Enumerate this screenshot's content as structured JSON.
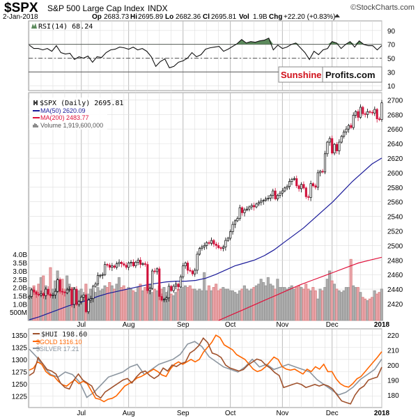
{
  "header": {
    "symbol": "$SPX",
    "name": "S&P 500 Large Cap Index",
    "exchange": "INDX",
    "watermark": "©StockCharts.com",
    "date": "2-Jan-2018",
    "op_label": "Op",
    "op": "2683.73",
    "hi_label": "Hi",
    "hi": "2695.89",
    "lo_label": "Lo",
    "lo": "2682.36",
    "cl_label": "Cl",
    "cl": "2695.81",
    "vol_label": "Vol",
    "vol": "1.9B",
    "chg_label": "Chg",
    "chg": "+22.20 (+0.83%)"
  },
  "logo": {
    "part1": "Sunshine",
    "part2": "Profits.com"
  },
  "colors": {
    "up": "#000000",
    "down": "#d0103a",
    "ma50": "#1a1a99",
    "ma200": "#e0103a",
    "vol_up": "#b0b0b0",
    "vol_down": "#eaa8ae",
    "rsi_fill": "#5c8a5c",
    "hui": "#a0522d",
    "gold": "#ff6600",
    "silver": "#8c96a0",
    "grid": "#dddddd"
  },
  "chart_data": [
    {
      "type": "line",
      "panel": "rsi",
      "legend": "RSI(14) 68.24",
      "y_ticks": [
        "90",
        "70",
        "50",
        "30",
        "10"
      ],
      "ylim": [
        3,
        104
      ],
      "reference_lines": [
        70,
        50,
        30
      ],
      "values": [
        69,
        64,
        64,
        62,
        64,
        60,
        68,
        58,
        56,
        57,
        48,
        52,
        50,
        53,
        44,
        52,
        51,
        58,
        62,
        63,
        66,
        65,
        63,
        66,
        62,
        64,
        60,
        52,
        38,
        45,
        49,
        36,
        38,
        44,
        46,
        50,
        58,
        52,
        55,
        63,
        65,
        66,
        67,
        60,
        63,
        67,
        71,
        77,
        72,
        74,
        73,
        75,
        76,
        79,
        62,
        69,
        64,
        66,
        70,
        72,
        65,
        58,
        48,
        60,
        55,
        62,
        64,
        74,
        72,
        64,
        70,
        74,
        66,
        75,
        70,
        68,
        68,
        62,
        68.24
      ]
    },
    {
      "type": "candlestick",
      "panel": "price",
      "legend": [
        {
          "label": "$SPX (Daily) 2695.81"
        },
        {
          "label": "MA(50) 2620.09"
        },
        {
          "label": "MA(200) 2483.77"
        },
        {
          "label": "Volume 1,919,600,000"
        }
      ],
      "y_ticks": [
        "2700",
        "2680",
        "2660",
        "2640",
        "2620",
        "2600",
        "2580",
        "2560",
        "2540",
        "2520",
        "2500",
        "2480",
        "2460",
        "2440",
        "2420"
      ],
      "ylim": [
        2397,
        2710
      ],
      "volume_ticks": [
        "4.0B",
        "3.5B",
        "3.0B",
        "2.5B",
        "2.0B",
        "1.5B",
        "1.0B",
        "500M"
      ],
      "x_ticks": [
        {
          "label": "Jul",
          "index": 22
        },
        {
          "label": "Aug",
          "index": 42
        },
        {
          "label": "Sep",
          "index": 65
        },
        {
          "label": "Oct",
          "index": 85
        },
        {
          "label": "Nov",
          "index": 107
        },
        {
          "label": "Dec",
          "index": 128
        },
        {
          "label": "2018",
          "index": 149
        }
      ],
      "close": [
        2430,
        2439,
        2436,
        2433,
        2432,
        2434,
        2431,
        2440,
        2433,
        2431,
        2432,
        2437,
        2453,
        2437,
        2436,
        2435,
        2439,
        2440,
        2419,
        2440,
        2419,
        2423,
        2429,
        2432,
        2409,
        2425,
        2427,
        2444,
        2447,
        2459,
        2459,
        2460,
        2474,
        2473,
        2470,
        2472,
        2470,
        2475,
        2477,
        2475,
        2473,
        2470,
        2476,
        2477,
        2472,
        2477,
        2480,
        2474,
        2475,
        2474,
        2438,
        2441,
        2465,
        2464,
        2468,
        2430,
        2425,
        2426,
        2428,
        2444,
        2438,
        2444,
        2447,
        2443,
        2457,
        2472,
        2476,
        2466,
        2465,
        2461,
        2466,
        2488,
        2496,
        2498,
        2500,
        2504,
        2503,
        2507,
        2502,
        2500,
        2497,
        2496,
        2498,
        2507,
        2510,
        2519,
        2529,
        2534,
        2537,
        2552,
        2545,
        2549,
        2550,
        2553,
        2555,
        2553,
        2557,
        2559,
        2561,
        2562,
        2564,
        2565,
        2569,
        2575,
        2564,
        2569,
        2572,
        2575,
        2579,
        2581,
        2588,
        2591,
        2592,
        2582,
        2578,
        2584,
        2579,
        2567,
        2566,
        2585,
        2582,
        2580,
        2600,
        2602,
        2601,
        2626,
        2642,
        2647,
        2627,
        2639,
        2630,
        2642,
        2650,
        2656,
        2660,
        2665,
        2662,
        2679,
        2684,
        2676,
        2690,
        2681,
        2680,
        2684,
        2683,
        2682,
        2687,
        2674,
        2673,
        2696
      ],
      "volume_billions": [
        2.0,
        1.9,
        2.1,
        1.8,
        2.2,
        2.6,
        2.7,
        2.1,
        1.7,
        3.2,
        1.9,
        2.4,
        3.0,
        2.1,
        2.5,
        1.9,
        2.7,
        2.2,
        2.0,
        2.0,
        1.6,
        1.8,
        1.9,
        1.4,
        2.2,
        1.6,
        1.9,
        1.8,
        1.7,
        2.0,
        1.8,
        1.9,
        2.1,
        2.0,
        2.3,
        2.1,
        1.9,
        2.2,
        2.6,
        2.0,
        2.1,
        1.9,
        2.0,
        1.9,
        1.8,
        1.7,
        2.0,
        2.2,
        1.8,
        2.0,
        2.1,
        2.2,
        1.7,
        1.9,
        1.8,
        2.1,
        1.9,
        2.0,
        1.7,
        1.8,
        1.6,
        1.5,
        1.7,
        1.9,
        1.9,
        2.0,
        2.1,
        2.0,
        2.1,
        1.9,
        1.9,
        1.8,
        1.9,
        1.8,
        2.9,
        1.8,
        2.1,
        1.8,
        2.0,
        2.2,
        1.8,
        1.9,
        2.0,
        1.9,
        1.9,
        1.8,
        1.8,
        1.7,
        1.6,
        1.8,
        1.9,
        2.1,
        1.9,
        1.8,
        1.9,
        2.0,
        2.1,
        2.2,
        2.5,
        2.3,
        2.1,
        2.6,
        2.2,
        2.1,
        1.9,
        2.5,
        2.0,
        2.0,
        2.0,
        1.9,
        2.0,
        2.1,
        1.9,
        2.0,
        2.1,
        2.0,
        1.9,
        2.2,
        1.9,
        1.8,
        2.0,
        1.8,
        1.3,
        1.9,
        1.8,
        2.0,
        2.5,
        3.0,
        2.4,
        2.2,
        1.9,
        1.8,
        1.7,
        1.8,
        2.0,
        2.0,
        3.7,
        2.1,
        2.0,
        2.0,
        1.7,
        1.4,
        1.3,
        1.2,
        1.3,
        1.4,
        1.8,
        1.6,
        1.7,
        1.9
      ],
      "ma50": [
        2398,
        2402,
        2407,
        2412,
        2417,
        2421,
        2425,
        2430,
        2434,
        2437,
        2440,
        2443,
        2446,
        2448,
        2450,
        2451,
        2451,
        2452,
        2455,
        2460,
        2466,
        2472,
        2476,
        2480,
        2486,
        2494,
        2504,
        2514,
        2524,
        2536,
        2548,
        2560,
        2574,
        2588,
        2600,
        2612,
        2620.09
      ],
      "ma200_start_index": 80,
      "ma200": [
        2397,
        2404,
        2411,
        2418,
        2425,
        2432,
        2439,
        2446,
        2452,
        2458,
        2464,
        2470,
        2476,
        2480,
        2483.77
      ]
    },
    {
      "type": "line",
      "panel": "commodities",
      "left_axis_ticks": [
        "1350",
        "1325",
        "1300",
        "1275",
        "1250",
        "1225"
      ],
      "left_ylim": [
        1201,
        1363
      ],
      "right_axis_ticks": [
        "220",
        "210",
        "200",
        "190",
        "180"
      ],
      "right_ylim": [
        171.6,
        224.2
      ],
      "x_ticks": [
        {
          "label": "Jul",
          "index": 22
        },
        {
          "label": "Aug",
          "index": 42
        },
        {
          "label": "Sep",
          "index": 65
        },
        {
          "label": "Oct",
          "index": 85
        },
        {
          "label": "Nov",
          "index": 107
        },
        {
          "label": "Dec",
          "index": 128
        },
        {
          "label": "2018",
          "index": 149
        }
      ],
      "series": [
        {
          "name": "$HUI 198.60",
          "axis": "right",
          "values": [
            193,
            195,
            205,
            201,
            197,
            196,
            194,
            188,
            185,
            184,
            190,
            194,
            190,
            188,
            186,
            180,
            178,
            182,
            184,
            186,
            188,
            190,
            191,
            188,
            192,
            195,
            196,
            193,
            191,
            193,
            198,
            196,
            200,
            199,
            201,
            202,
            208,
            210,
            213,
            218,
            215,
            208,
            207,
            205,
            200,
            198,
            197,
            196,
            197,
            200,
            202,
            204,
            203,
            200,
            198,
            195,
            193,
            185,
            186,
            187,
            188,
            187,
            185,
            186,
            187,
            186,
            187,
            186,
            184,
            180,
            176,
            175,
            174,
            180,
            184,
            186,
            190,
            191,
            192,
            198.6
          ]
        },
        {
          "name": "$GOLD 1316.10",
          "axis": "left",
          "values": [
            1278,
            1282,
            1295,
            1290,
            1275,
            1268,
            1265,
            1255,
            1248,
            1245,
            1252,
            1258,
            1250,
            1255,
            1250,
            1235,
            1220,
            1218,
            1213,
            1218,
            1220,
            1225,
            1235,
            1245,
            1250,
            1255,
            1262,
            1265,
            1270,
            1275,
            1280,
            1275,
            1268,
            1265,
            1280,
            1290,
            1295,
            1290,
            1295,
            1300,
            1295,
            1300,
            1315,
            1325,
            1335,
            1350,
            1345,
            1330,
            1325,
            1320,
            1310,
            1305,
            1300,
            1290,
            1280,
            1275,
            1278,
            1285,
            1295,
            1305,
            1300,
            1285,
            1280,
            1278,
            1280,
            1275,
            1270,
            1280,
            1275,
            1285,
            1280,
            1290,
            1275,
            1275,
            1260,
            1250,
            1245,
            1243,
            1250,
            1260,
            1265,
            1275,
            1285,
            1295,
            1305,
            1316.1
          ]
        },
        {
          "name": "$SILVER 17.21",
          "axis": "none",
          "values": [
            17.6,
            17.3,
            16.9,
            16.6,
            16.5,
            16.7,
            16.6,
            16.3,
            15.7,
            15.9,
            16.2,
            16.5,
            16.6,
            16.7,
            16.9,
            17.0,
            16.6,
            16.8,
            17.0,
            17.1,
            17.2,
            17.4,
            17.8,
            17.9,
            17.7,
            17.3,
            17.1,
            16.9,
            16.8,
            16.7,
            16.9,
            17.2,
            16.9,
            17.0,
            16.8,
            16.9,
            17.0,
            16.9,
            16.8,
            16.7,
            16.4,
            16.2,
            16.0,
            15.8,
            15.9,
            16.1,
            16.4,
            16.6,
            16.8,
            17.21
          ]
        }
      ]
    }
  ]
}
